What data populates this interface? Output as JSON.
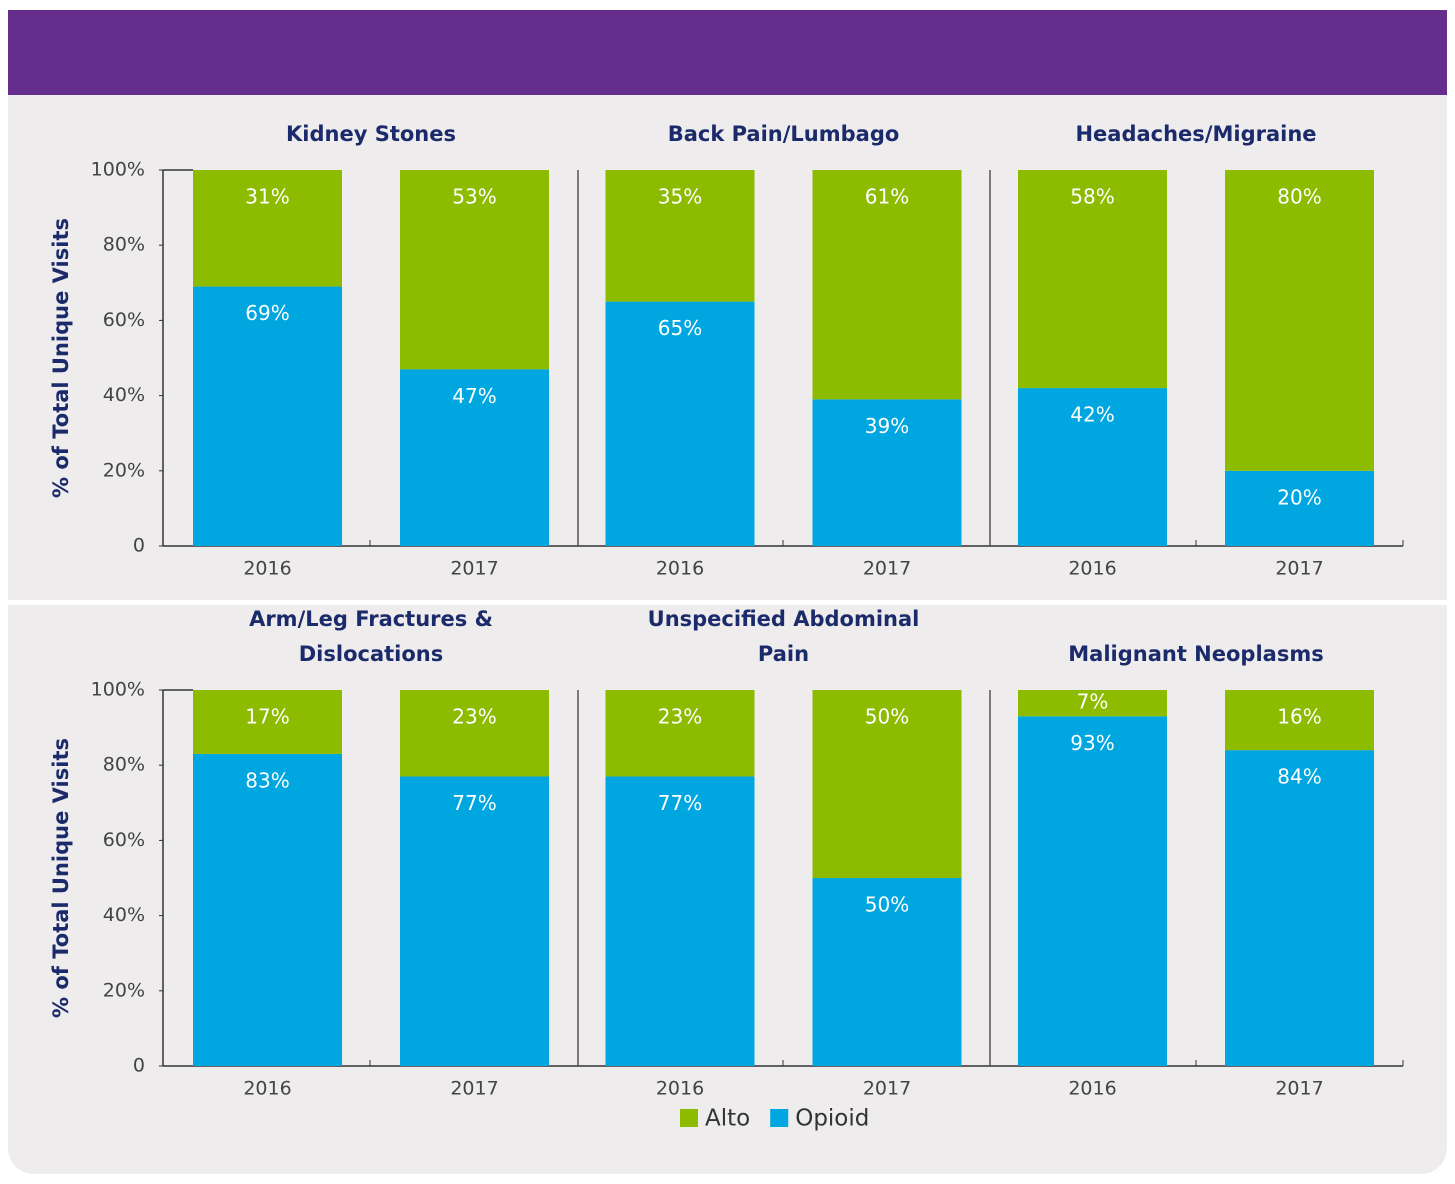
{
  "chart_data": [
    {
      "type": "bar",
      "stacked": true,
      "group_titles": [
        "Kidney Stones",
        "Back Pain/Lumbago",
        "Headaches/Migraine"
      ],
      "categories": [
        "2016",
        "2017",
        "2016",
        "2017",
        "2016",
        "2017"
      ],
      "ylabel": "% of Total Unique Visits",
      "ylim": [
        0,
        100
      ],
      "yticks": [
        0,
        {
          "value": 20,
          "label": "20%"
        },
        {
          "value": 40,
          "label": "40%"
        },
        {
          "value": 60,
          "label": "60%"
        },
        {
          "value": 80,
          "label": "80%"
        },
        {
          "value": 100,
          "label": "100%"
        }
      ],
      "series": [
        {
          "name": "Opioid",
          "color": "#00a6df",
          "values": [
            69,
            47,
            65,
            39,
            42,
            20
          ],
          "value_labels": [
            "69%",
            "47%",
            "65%",
            "39%",
            "42%",
            "20%"
          ]
        },
        {
          "name": "Alto",
          "color": "#8dbb00",
          "values": [
            31,
            53,
            35,
            61,
            58,
            80
          ],
          "value_labels": [
            "31%",
            "53%",
            "35%",
            "61%",
            "58%",
            "80%"
          ]
        }
      ]
    },
    {
      "type": "bar",
      "stacked": true,
      "group_titles": [
        "Arm/Leg Fractures & Dislocations",
        "Unspecified Abdominal Pain",
        "Malignant Neoplasms"
      ],
      "categories": [
        "2016",
        "2017",
        "2016",
        "2017",
        "2016",
        "2017"
      ],
      "ylabel": "% of Total Unique Visits",
      "ylim": [
        0,
        100
      ],
      "yticks": [
        0,
        {
          "value": 20,
          "label": "20%"
        },
        {
          "value": 40,
          "label": "40%"
        },
        {
          "value": 60,
          "label": "60%"
        },
        {
          "value": 80,
          "label": "80%"
        },
        {
          "value": 100,
          "label": "100%"
        }
      ],
      "series": [
        {
          "name": "Opioid",
          "color": "#00a6df",
          "values": [
            83,
            77,
            77,
            50,
            93,
            84
          ],
          "value_labels": [
            "83%",
            "77%",
            "77%",
            "50%",
            "93%",
            "84%"
          ]
        },
        {
          "name": "Alto",
          "color": "#8dbb00",
          "values": [
            17,
            23,
            23,
            50,
            7,
            16
          ],
          "value_labels": [
            "17%",
            "23%",
            "23%",
            "50%",
            "7%",
            "16%"
          ]
        }
      ]
    }
  ]
}
